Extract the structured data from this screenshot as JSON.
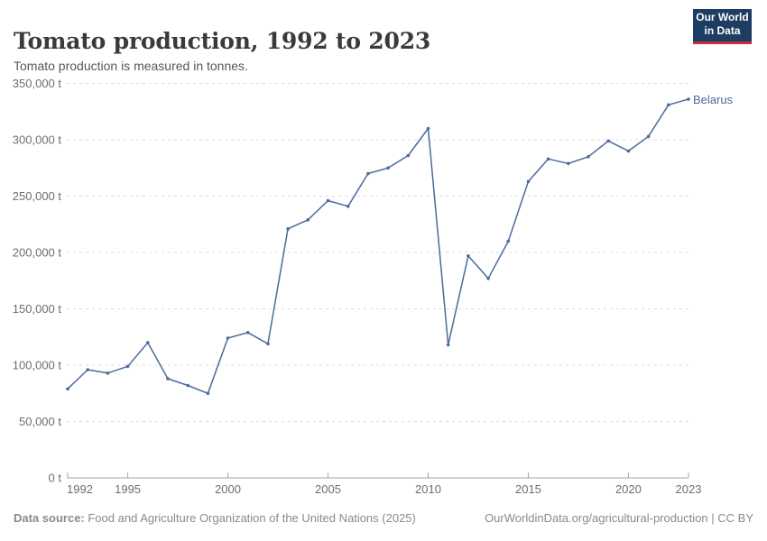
{
  "chart_data": {
    "type": "line",
    "title": "Tomato production, 1992 to 2023",
    "subtitle": "Tomato production is measured in tonnes.",
    "unit": "t",
    "xlabel": "",
    "ylabel": "",
    "ylim": [
      0,
      350000
    ],
    "xlim": [
      1992,
      2023
    ],
    "grid": "horizontal-dashed",
    "legend_position": "end-of-line-label",
    "yticks": [
      0,
      50000,
      100000,
      150000,
      200000,
      250000,
      300000,
      350000
    ],
    "ytick_labels": [
      "0 t",
      "50,000 t",
      "100,000 t",
      "150,000 t",
      "200,000 t",
      "250,000 t",
      "300,000 t",
      "350,000 t"
    ],
    "xticks": [
      1992,
      1995,
      2000,
      2005,
      2010,
      2015,
      2020,
      2023
    ],
    "xtick_labels": [
      "1992",
      "1995",
      "2000",
      "2005",
      "2010",
      "2015",
      "2020",
      "2023"
    ],
    "x": [
      1992,
      1993,
      1994,
      1995,
      1996,
      1997,
      1998,
      1999,
      2000,
      2001,
      2002,
      2003,
      2004,
      2005,
      2006,
      2007,
      2008,
      2009,
      2010,
      2011,
      2012,
      2013,
      2014,
      2015,
      2016,
      2017,
      2018,
      2019,
      2020,
      2021,
      2022,
      2023
    ],
    "series": [
      {
        "name": "Belarus",
        "color": "#4C6A9C",
        "values": [
          79000,
          96000,
          93000,
          99000,
          120000,
          88000,
          82000,
          75000,
          124000,
          129000,
          119000,
          221000,
          229000,
          246000,
          241000,
          270000,
          275000,
          286000,
          310000,
          118000,
          197000,
          177000,
          210000,
          263000,
          283000,
          279000,
          285000,
          299000,
          290000,
          303000,
          331000,
          336000
        ]
      }
    ],
    "colors": {
      "gridline": "#dcdcdc",
      "axis": "#a5a5a5",
      "tick_text": "#6e6e6e"
    }
  },
  "logo": {
    "line1": "Our World",
    "line2": "in Data"
  },
  "footer": {
    "source_label": "Data source:",
    "source_text": " Food and Agriculture Organization of the United Nations (2025)",
    "credit": "OurWorldinData.org/agricultural-production | CC BY"
  }
}
